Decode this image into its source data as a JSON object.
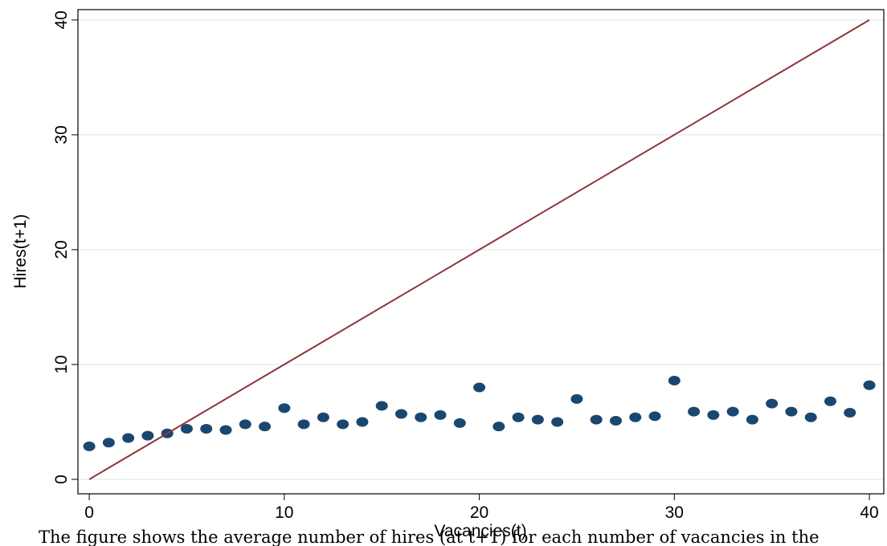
{
  "chart_data": {
    "type": "scatter",
    "xlabel": "Vacancies(t)",
    "ylabel": "Hires(t+1)",
    "xlim": [
      -0.58,
      40.74
    ],
    "ylim": [
      -1.26,
      40.9
    ],
    "xticks": [
      0,
      10,
      20,
      30,
      40
    ],
    "yticks": [
      0,
      10,
      20,
      30,
      40
    ],
    "grid": true,
    "grid_color": "#e6eef2",
    "series": [
      {
        "type": "scatter",
        "color": "#1a476f",
        "x": [
          0,
          1,
          2,
          3,
          4,
          5,
          6,
          7,
          8,
          9,
          10,
          11,
          12,
          13,
          14,
          15,
          16,
          17,
          18,
          19,
          20,
          21,
          22,
          23,
          24,
          25,
          26,
          27,
          28,
          29,
          30,
          31,
          32,
          33,
          34,
          35,
          36,
          37,
          38,
          39,
          40
        ],
        "values": [
          2.87,
          3.2,
          3.6,
          3.8,
          4.0,
          4.4,
          4.4,
          4.3,
          4.8,
          4.6,
          6.2,
          4.8,
          5.4,
          4.8,
          5.0,
          6.4,
          5.7,
          5.4,
          5.6,
          4.9,
          8.0,
          4.6,
          5.4,
          5.2,
          5.0,
          7.0,
          5.2,
          5.1,
          5.4,
          5.5,
          8.6,
          5.9,
          5.6,
          5.9,
          5.2,
          6.6,
          5.9,
          5.4,
          6.8,
          5.8,
          8.2
        ]
      },
      {
        "type": "line",
        "color": "#90353b",
        "x": [
          0,
          40
        ],
        "values": [
          0,
          40
        ]
      }
    ]
  },
  "caption": "The figure shows the average number of hires (at t+1) for each number of vacancies in the"
}
